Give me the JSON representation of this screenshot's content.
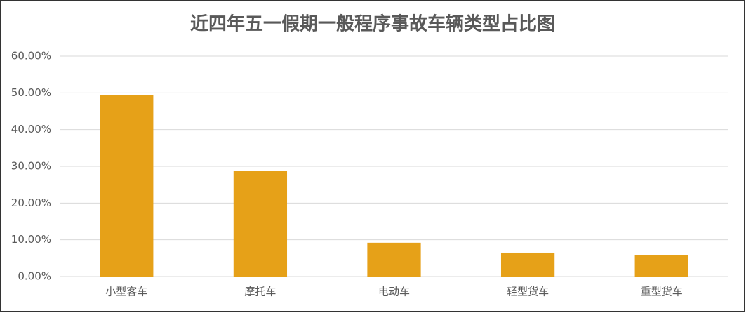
{
  "chart_data": {
    "type": "bar",
    "title": "近四年五一假期一般程序事故车辆类型占比图",
    "categories": [
      "小型客车",
      "摩托车",
      "电动车",
      "轻型货车",
      "重型货车"
    ],
    "values": [
      49.3,
      28.7,
      9.2,
      6.5,
      5.9
    ],
    "color": "#e6a118",
    "ylim": [
      0,
      60
    ],
    "yticks": [
      {
        "value": 0,
        "label": "0.00%"
      },
      {
        "value": 10,
        "label": "10.00%"
      },
      {
        "value": 20,
        "label": "20.00%"
      },
      {
        "value": 30,
        "label": "30.00%"
      },
      {
        "value": 40,
        "label": "40.00%"
      },
      {
        "value": 50,
        "label": "50.00%"
      },
      {
        "value": 60,
        "label": "60.00%"
      }
    ],
    "grid": true
  }
}
